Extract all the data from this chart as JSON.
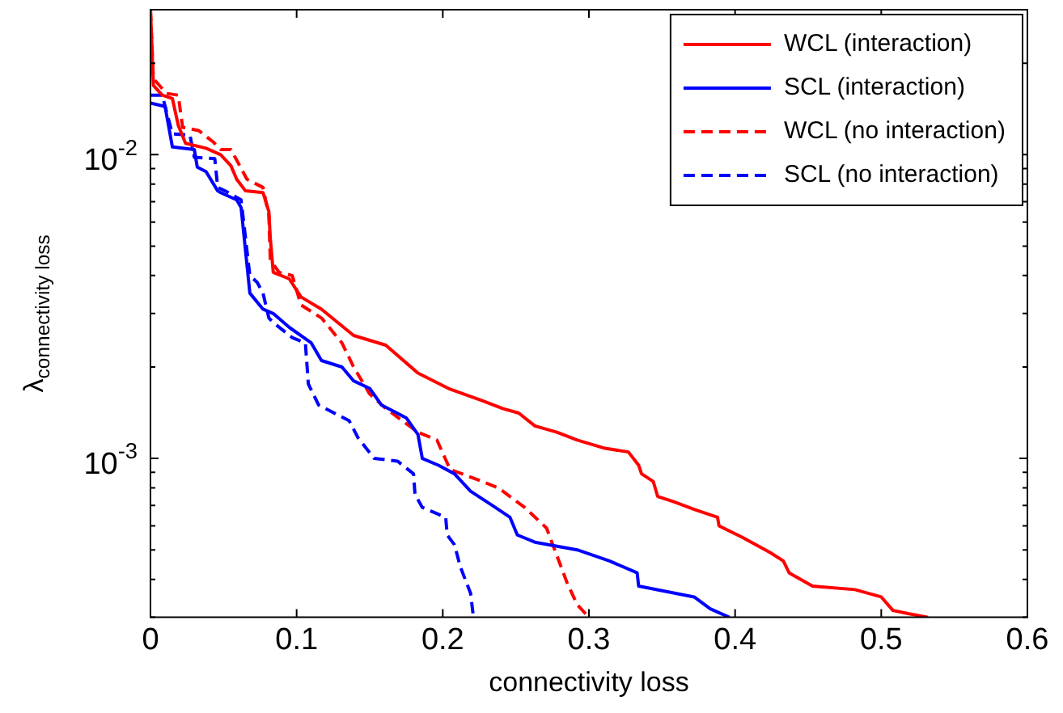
{
  "chart_data": {
    "type": "line",
    "xlabel": "connectivity loss",
    "ylabel": "λ$_{connectivity loss}$",
    "log": "y",
    "xlim": [
      0,
      0.6
    ],
    "xticks": [
      0,
      0.1,
      0.2,
      0.3,
      0.4,
      0.5,
      0.6
    ],
    "ylim": [
      0.0003,
      0.03
    ],
    "yticks": [
      {
        "value": 0.0003,
        "label": null
      },
      {
        "value": 0.0004,
        "label": null
      },
      {
        "value": 0.0005,
        "label": null
      },
      {
        "value": 0.0006,
        "label": null
      },
      {
        "value": 0.0007,
        "label": null
      },
      {
        "value": 0.0008,
        "label": null
      },
      {
        "value": 0.0009,
        "label": null
      },
      {
        "value": 0.001,
        "label": "10$^{-3}$"
      },
      {
        "value": 0.002,
        "label": null
      },
      {
        "value": 0.003,
        "label": null
      },
      {
        "value": 0.004,
        "label": null
      },
      {
        "value": 0.005,
        "label": null
      },
      {
        "value": 0.006,
        "label": null
      },
      {
        "value": 0.007,
        "label": null
      },
      {
        "value": 0.008,
        "label": null
      },
      {
        "value": 0.009,
        "label": null
      },
      {
        "value": 0.01,
        "label": "10$^{-2}$"
      },
      {
        "value": 0.02,
        "label": null
      },
      {
        "value": 0.03,
        "label": null
      }
    ],
    "grid": false,
    "legend": "top right",
    "marker": "none",
    "series": [
      {
        "name": "WCL (interaction)",
        "color": "#ff0000",
        "line_style": "solid",
        "x": [
          0,
          0.002,
          0.008,
          0.015,
          0.019,
          0.024,
          0.038,
          0.048,
          0.055,
          0.059,
          0.065,
          0.077,
          0.081,
          0.082,
          0.084,
          0.095,
          0.103,
          0.117,
          0.139,
          0.161,
          0.183,
          0.205,
          0.227,
          0.241,
          0.252,
          0.263,
          0.278,
          0.292,
          0.311,
          0.327,
          0.334,
          0.336,
          0.344,
          0.347,
          0.358,
          0.372,
          0.388,
          0.389,
          0.405,
          0.424,
          0.433,
          0.437,
          0.453,
          0.482,
          0.5,
          0.508,
          0.519,
          0.532
        ],
        "values": [
          0.03,
          0.0169,
          0.0157,
          0.0153,
          0.0125,
          0.0109,
          0.0105,
          0.01,
          0.0092,
          0.0083,
          0.0076,
          0.0075,
          0.0065,
          0.0053,
          0.0041,
          0.0039,
          0.0034,
          0.0031,
          0.00254,
          0.00236,
          0.00191,
          0.00169,
          0.00155,
          0.00146,
          0.00141,
          0.00128,
          0.00122,
          0.00115,
          0.00108,
          0.00105,
          0.00095,
          0.00089,
          0.00084,
          0.00075,
          0.00072,
          0.00068,
          0.00064,
          0.0006,
          0.00055,
          0.00049,
          0.00046,
          0.00042,
          0.00038,
          0.00037,
          0.00035,
          0.000316,
          0.000308,
          0.0003
        ]
      },
      {
        "name": "SCL (interaction)",
        "color": "#0000ff",
        "line_style": "solid",
        "x": [
          0,
          0.01,
          0.015,
          0.03,
          0.032,
          0.038,
          0.046,
          0.048,
          0.059,
          0.062,
          0.068,
          0.077,
          0.084,
          0.095,
          0.11,
          0.117,
          0.131,
          0.139,
          0.15,
          0.158,
          0.175,
          0.183,
          0.186,
          0.197,
          0.208,
          0.219,
          0.234,
          0.246,
          0.251,
          0.263,
          0.292,
          0.314,
          0.333,
          0.334,
          0.372,
          0.383,
          0.396
        ],
        "values": [
          0.0148,
          0.0144,
          0.0106,
          0.0104,
          0.0091,
          0.0088,
          0.0076,
          0.0075,
          0.0071,
          0.0067,
          0.0035,
          0.0031,
          0.003,
          0.0027,
          0.0024,
          0.0021,
          0.002,
          0.0018,
          0.0017,
          0.0015,
          0.00136,
          0.0012,
          0.001,
          0.00095,
          0.00089,
          0.00078,
          0.0007,
          0.00064,
          0.00056,
          0.00053,
          0.0005,
          0.00046,
          0.00042,
          0.00038,
          0.00035,
          0.00032,
          0.0003
        ]
      },
      {
        "name": "WCL (no interaction)",
        "color": "#ff0000",
        "line_style": "dashed",
        "x": [
          0,
          0.002,
          0.011,
          0.019,
          0.022,
          0.033,
          0.043,
          0.048,
          0.055,
          0.06,
          0.066,
          0.077,
          0.081,
          0.082,
          0.088,
          0.097,
          0.103,
          0.117,
          0.131,
          0.139,
          0.15,
          0.161,
          0.183,
          0.196,
          0.205,
          0.227,
          0.238,
          0.256,
          0.271,
          0.278,
          0.285,
          0.292,
          0.3
        ],
        "values": [
          0.03,
          0.0178,
          0.0159,
          0.0157,
          0.0123,
          0.012,
          0.011,
          0.0104,
          0.0104,
          0.0094,
          0.0083,
          0.0078,
          0.0063,
          0.0045,
          0.0041,
          0.004,
          0.0032,
          0.0029,
          0.0024,
          0.002,
          0.00163,
          0.00146,
          0.00122,
          0.00115,
          0.00092,
          0.00084,
          0.0008,
          0.00069,
          0.00059,
          0.00048,
          0.00039,
          0.00033,
          0.0003
        ]
      },
      {
        "name": "SCL (no interaction)",
        "color": "#0000ff",
        "line_style": "dashed",
        "x": [
          0,
          0.008,
          0.015,
          0.027,
          0.03,
          0.044,
          0.046,
          0.051,
          0.062,
          0.068,
          0.073,
          0.077,
          0.081,
          0.084,
          0.097,
          0.106,
          0.108,
          0.115,
          0.136,
          0.142,
          0.153,
          0.169,
          0.18,
          0.181,
          0.186,
          0.202,
          0.203,
          0.208,
          0.212,
          0.219,
          0.221
        ],
        "values": [
          0.0157,
          0.0157,
          0.0117,
          0.0116,
          0.0098,
          0.0097,
          0.0078,
          0.0076,
          0.0071,
          0.004,
          0.0038,
          0.0035,
          0.0029,
          0.0028,
          0.0025,
          0.0024,
          0.00176,
          0.0015,
          0.00133,
          0.00117,
          0.001,
          0.00098,
          0.00089,
          0.00076,
          0.00069,
          0.00064,
          0.00056,
          0.00052,
          0.00044,
          0.00036,
          0.0003
        ]
      }
    ]
  }
}
